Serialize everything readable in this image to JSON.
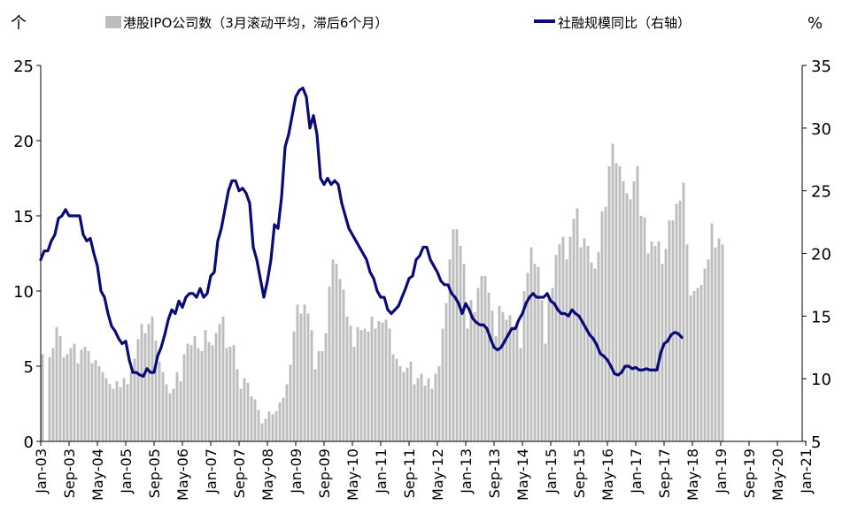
{
  "chart_data": {
    "type": "bar+line",
    "left_unit": "个",
    "right_unit": "%",
    "legend": {
      "bar_label": "港股IPO公司数（3月滚动平均，滞后6个月）",
      "line_label": "社融规模同比（右轴）"
    },
    "colors": {
      "bar": "#bdbdbd",
      "line": "#0a0a78",
      "axis": "#000000"
    },
    "ylim_left": [
      0,
      25
    ],
    "ylim_right": [
      5,
      35
    ],
    "yticks_left": [
      "0",
      "5",
      "10",
      "15",
      "20",
      "25"
    ],
    "yticks_right": [
      "5",
      "10",
      "15",
      "20",
      "25",
      "30",
      "35"
    ],
    "xticks": [
      "Jan-03",
      "Sep-03",
      "May-04",
      "Jan-05",
      "Sep-05",
      "May-06",
      "Jan-07",
      "Sep-07",
      "May-08",
      "Jan-09",
      "Sep-09",
      "May-10",
      "Jan-11",
      "Sep-11",
      "May-12",
      "Jan-13",
      "Sep-13",
      "May-14",
      "Jan-15",
      "Sep-15",
      "May-16",
      "Jan-17",
      "Sep-17",
      "May-18",
      "Jan-19",
      "Sep-19",
      "May-20",
      "Jan-21"
    ],
    "x_start": "2003-01",
    "bar_months": 215,
    "bar_anchors": [
      [
        0,
        5.8
      ],
      [
        2,
        5.6
      ],
      [
        3,
        6.2
      ],
      [
        4,
        7.6
      ],
      [
        5,
        7.0
      ],
      [
        6,
        5.6
      ],
      [
        7,
        5.8
      ],
      [
        8,
        6.2
      ],
      [
        9,
        6.5
      ],
      [
        10,
        5.2
      ],
      [
        11,
        6.1
      ],
      [
        12,
        6.3
      ],
      [
        13,
        6.0
      ],
      [
        14,
        5.2
      ],
      [
        15,
        5.4
      ],
      [
        16,
        5.0
      ],
      [
        17,
        4.6
      ],
      [
        18,
        4.2
      ],
      [
        19,
        3.8
      ],
      [
        20,
        3.5
      ],
      [
        21,
        4.0
      ],
      [
        22,
        3.6
      ],
      [
        23,
        4.2
      ],
      [
        24,
        3.8
      ],
      [
        25,
        4.6
      ],
      [
        26,
        5.5
      ],
      [
        27,
        6.8
      ],
      [
        28,
        7.8
      ],
      [
        29,
        7.2
      ],
      [
        30,
        7.8
      ],
      [
        31,
        8.3
      ],
      [
        32,
        6.7
      ],
      [
        33,
        5.3
      ],
      [
        34,
        4.6
      ],
      [
        35,
        3.8
      ],
      [
        36,
        3.2
      ],
      [
        37,
        3.5
      ],
      [
        38,
        4.6
      ],
      [
        39,
        4.0
      ],
      [
        40,
        5.8
      ],
      [
        41,
        6.5
      ],
      [
        42,
        6.4
      ],
      [
        43,
        7.0
      ],
      [
        44,
        6.2
      ],
      [
        45,
        6.0
      ],
      [
        46,
        7.4
      ],
      [
        47,
        6.6
      ],
      [
        48,
        6.4
      ],
      [
        49,
        7.2
      ],
      [
        50,
        7.8
      ],
      [
        51,
        8.3
      ],
      [
        52,
        6.2
      ],
      [
        53,
        6.3
      ],
      [
        54,
        6.4
      ],
      [
        55,
        4.8
      ],
      [
        56,
        3.5
      ],
      [
        57,
        4.2
      ],
      [
        58,
        3.9
      ],
      [
        59,
        3.0
      ],
      [
        60,
        2.8
      ],
      [
        61,
        2.1
      ],
      [
        62,
        1.2
      ],
      [
        63,
        1.5
      ],
      [
        64,
        2.0
      ],
      [
        65,
        1.8
      ],
      [
        66,
        2.0
      ],
      [
        67,
        2.6
      ],
      [
        68,
        2.9
      ],
      [
        69,
        3.8
      ],
      [
        70,
        5.1
      ],
      [
        71,
        7.3
      ],
      [
        72,
        9.1
      ],
      [
        73,
        8.5
      ],
      [
        74,
        9.1
      ],
      [
        75,
        8.5
      ],
      [
        76,
        7.4
      ],
      [
        77,
        4.8
      ],
      [
        78,
        6.0
      ],
      [
        79,
        6.0
      ],
      [
        80,
        7.2
      ],
      [
        81,
        10.3
      ],
      [
        82,
        12.1
      ],
      [
        83,
        11.8
      ],
      [
        84,
        10.8
      ],
      [
        85,
        10.1
      ],
      [
        86,
        8.3
      ],
      [
        87,
        7.7
      ],
      [
        88,
        6.3
      ],
      [
        89,
        7.6
      ],
      [
        90,
        7.4
      ],
      [
        91,
        7.5
      ],
      [
        92,
        7.3
      ],
      [
        93,
        8.3
      ],
      [
        94,
        7.5
      ],
      [
        95,
        8.0
      ],
      [
        96,
        7.9
      ],
      [
        97,
        8.1
      ],
      [
        98,
        7.5
      ],
      [
        99,
        5.8
      ],
      [
        100,
        5.5
      ],
      [
        101,
        5.0
      ],
      [
        102,
        4.6
      ],
      [
        103,
        4.9
      ],
      [
        104,
        5.3
      ],
      [
        105,
        3.8
      ],
      [
        106,
        4.2
      ],
      [
        107,
        4.5
      ],
      [
        108,
        3.7
      ],
      [
        109,
        4.2
      ],
      [
        110,
        3.5
      ],
      [
        111,
        4.5
      ],
      [
        112,
        5.0
      ],
      [
        113,
        7.5
      ],
      [
        114,
        9.2
      ],
      [
        115,
        12.1
      ],
      [
        116,
        14.1
      ],
      [
        117,
        14.1
      ],
      [
        118,
        13.0
      ],
      [
        119,
        11.8
      ],
      [
        120,
        7.5
      ],
      [
        121,
        9.4
      ],
      [
        122,
        8.6
      ],
      [
        123,
        10.2
      ],
      [
        124,
        11.0
      ],
      [
        125,
        11.0
      ],
      [
        126,
        9.9
      ],
      [
        127,
        8.7
      ],
      [
        128,
        7.0
      ],
      [
        129,
        9.0
      ],
      [
        130,
        8.6
      ],
      [
        131,
        8.1
      ],
      [
        132,
        8.4
      ],
      [
        133,
        7.6
      ],
      [
        134,
        8.0
      ],
      [
        135,
        6.2
      ],
      [
        136,
        10.0
      ],
      [
        137,
        11.2
      ],
      [
        138,
        12.9
      ],
      [
        139,
        11.8
      ],
      [
        140,
        11.6
      ],
      [
        141,
        9.4
      ],
      [
        142,
        6.5
      ],
      [
        143,
        9.6
      ],
      [
        144,
        10.2
      ],
      [
        145,
        12.4
      ],
      [
        146,
        13.1
      ],
      [
        147,
        13.6
      ],
      [
        148,
        12.1
      ],
      [
        149,
        13.6
      ],
      [
        150,
        14.8
      ],
      [
        151,
        15.5
      ],
      [
        152,
        12.9
      ],
      [
        153,
        13.5
      ],
      [
        154,
        13.0
      ],
      [
        155,
        11.9
      ],
      [
        156,
        11.5
      ],
      [
        157,
        12.6
      ],
      [
        158,
        15.3
      ],
      [
        159,
        15.6
      ],
      [
        160,
        18.3
      ],
      [
        161,
        19.8
      ],
      [
        162,
        18.5
      ],
      [
        163,
        18.3
      ],
      [
        164,
        17.3
      ],
      [
        165,
        16.5
      ],
      [
        166,
        16.1
      ],
      [
        167,
        17.3
      ],
      [
        168,
        18.3
      ],
      [
        169,
        15.0
      ],
      [
        170,
        14.9
      ],
      [
        171,
        12.5
      ],
      [
        172,
        13.3
      ],
      [
        173,
        13.0
      ],
      [
        174,
        13.3
      ],
      [
        175,
        11.8
      ],
      [
        176,
        12.8
      ],
      [
        177,
        14.7
      ],
      [
        178,
        14.7
      ],
      [
        179,
        15.8
      ],
      [
        180,
        16.0
      ],
      [
        181,
        17.2
      ],
      [
        182,
        13.1
      ],
      [
        183,
        9.7
      ],
      [
        184,
        10.0
      ],
      [
        185,
        10.2
      ],
      [
        186,
        10.4
      ],
      [
        187,
        11.5
      ],
      [
        188,
        12.1
      ],
      [
        189,
        14.5
      ],
      [
        190,
        12.9
      ],
      [
        191,
        13.5
      ],
      [
        192,
        13.1
      ]
    ],
    "line_points": [
      [
        0,
        19.5
      ],
      [
        1,
        20.2
      ],
      [
        2,
        20.2
      ],
      [
        3,
        21.0
      ],
      [
        4,
        21.5
      ],
      [
        5,
        22.8
      ],
      [
        6,
        23.0
      ],
      [
        7,
        23.5
      ],
      [
        8,
        23.0
      ],
      [
        9,
        23.0
      ],
      [
        10,
        23.0
      ],
      [
        11,
        23.0
      ],
      [
        12,
        21.5
      ],
      [
        13,
        21.0
      ],
      [
        14,
        21.2
      ],
      [
        15,
        20.0
      ],
      [
        16,
        19.0
      ],
      [
        17,
        17.0
      ],
      [
        18,
        16.5
      ],
      [
        19,
        15.2
      ],
      [
        20,
        14.2
      ],
      [
        21,
        13.8
      ],
      [
        22,
        13.2
      ],
      [
        23,
        12.8
      ],
      [
        24,
        13.0
      ],
      [
        25,
        11.5
      ],
      [
        26,
        10.5
      ],
      [
        27,
        10.5
      ],
      [
        28,
        10.3
      ],
      [
        29,
        10.2
      ],
      [
        30,
        10.8
      ],
      [
        31,
        10.5
      ],
      [
        32,
        10.5
      ],
      [
        33,
        11.8
      ],
      [
        34,
        12.5
      ],
      [
        35,
        13.5
      ],
      [
        36,
        14.7
      ],
      [
        37,
        15.5
      ],
      [
        38,
        15.2
      ],
      [
        39,
        16.2
      ],
      [
        40,
        15.7
      ],
      [
        41,
        16.5
      ],
      [
        42,
        16.8
      ],
      [
        43,
        16.8
      ],
      [
        44,
        16.5
      ],
      [
        45,
        17.2
      ],
      [
        46,
        16.5
      ],
      [
        47,
        16.8
      ],
      [
        48,
        18.2
      ],
      [
        49,
        18.5
      ],
      [
        50,
        21.0
      ],
      [
        51,
        22.0
      ],
      [
        52,
        23.5
      ],
      [
        53,
        25.0
      ],
      [
        54,
        25.8
      ],
      [
        55,
        25.8
      ],
      [
        56,
        25.0
      ],
      [
        57,
        25.2
      ],
      [
        58,
        24.8
      ],
      [
        59,
        24.0
      ],
      [
        60,
        20.5
      ],
      [
        61,
        19.5
      ],
      [
        62,
        18.0
      ],
      [
        63,
        16.5
      ],
      [
        64,
        17.8
      ],
      [
        65,
        19.5
      ],
      [
        66,
        22.3
      ],
      [
        67,
        22.0
      ],
      [
        68,
        24.5
      ],
      [
        69,
        28.5
      ],
      [
        70,
        29.5
      ],
      [
        71,
        31.0
      ],
      [
        72,
        32.5
      ],
      [
        73,
        33.0
      ],
      [
        74,
        33.2
      ],
      [
        75,
        32.5
      ],
      [
        76,
        30.0
      ],
      [
        77,
        31.0
      ],
      [
        78,
        29.5
      ],
      [
        79,
        26.0
      ],
      [
        80,
        25.5
      ],
      [
        81,
        26.0
      ],
      [
        82,
        25.5
      ],
      [
        83,
        25.8
      ],
      [
        84,
        25.5
      ],
      [
        85,
        24.0
      ],
      [
        86,
        23.0
      ],
      [
        87,
        22.0
      ],
      [
        88,
        21.5
      ],
      [
        89,
        21.0
      ],
      [
        90,
        20.5
      ],
      [
        91,
        20.0
      ],
      [
        92,
        19.5
      ],
      [
        93,
        18.5
      ],
      [
        94,
        18.0
      ],
      [
        95,
        17.0
      ],
      [
        96,
        16.5
      ],
      [
        97,
        16.5
      ],
      [
        98,
        15.5
      ],
      [
        99,
        15.2
      ],
      [
        100,
        15.5
      ],
      [
        101,
        15.8
      ],
      [
        102,
        16.5
      ],
      [
        103,
        17.2
      ],
      [
        104,
        18.0
      ],
      [
        105,
        18.2
      ],
      [
        106,
        19.5
      ],
      [
        107,
        19.8
      ],
      [
        108,
        20.5
      ],
      [
        109,
        20.5
      ],
      [
        110,
        19.5
      ],
      [
        111,
        19.0
      ],
      [
        112,
        18.5
      ],
      [
        113,
        17.8
      ],
      [
        114,
        17.5
      ],
      [
        115,
        17.5
      ],
      [
        116,
        16.8
      ],
      [
        117,
        16.5
      ],
      [
        118,
        16.0
      ],
      [
        119,
        15.2
      ],
      [
        120,
        16.0
      ],
      [
        121,
        15.5
      ],
      [
        122,
        14.8
      ],
      [
        123,
        14.5
      ],
      [
        124,
        14.3
      ],
      [
        125,
        14.3
      ],
      [
        126,
        14.0
      ],
      [
        127,
        13.2
      ],
      [
        128,
        12.5
      ],
      [
        129,
        12.3
      ],
      [
        130,
        12.5
      ],
      [
        131,
        13.0
      ],
      [
        132,
        13.5
      ],
      [
        133,
        14.0
      ],
      [
        134,
        14.0
      ],
      [
        135,
        14.7
      ],
      [
        136,
        15.2
      ],
      [
        137,
        16.0
      ],
      [
        138,
        16.5
      ],
      [
        139,
        16.8
      ],
      [
        140,
        16.5
      ],
      [
        141,
        16.5
      ],
      [
        142,
        16.5
      ],
      [
        143,
        16.8
      ],
      [
        144,
        16.2
      ],
      [
        145,
        16.0
      ],
      [
        146,
        15.5
      ],
      [
        147,
        15.2
      ],
      [
        148,
        15.2
      ],
      [
        149,
        15.0
      ],
      [
        150,
        15.5
      ],
      [
        151,
        15.2
      ],
      [
        152,
        15.0
      ],
      [
        153,
        14.5
      ],
      [
        154,
        14.0
      ],
      [
        155,
        13.5
      ],
      [
        156,
        13.2
      ],
      [
        157,
        12.7
      ],
      [
        158,
        12.0
      ],
      [
        159,
        11.8
      ],
      [
        160,
        11.5
      ],
      [
        161,
        11.0
      ],
      [
        162,
        10.4
      ],
      [
        163,
        10.3
      ],
      [
        164,
        10.5
      ],
      [
        165,
        11.0
      ],
      [
        166,
        11.0
      ],
      [
        167,
        10.8
      ],
      [
        168,
        10.9
      ],
      [
        169,
        10.7
      ],
      [
        170,
        10.7
      ],
      [
        171,
        10.8
      ],
      [
        172,
        10.7
      ],
      [
        173,
        10.7
      ],
      [
        174,
        10.7
      ],
      [
        175,
        12.0
      ],
      [
        176,
        12.8
      ],
      [
        177,
        13.0
      ],
      [
        178,
        13.5
      ],
      [
        179,
        13.7
      ],
      [
        180,
        13.6
      ],
      [
        181,
        13.3
      ]
    ]
  }
}
